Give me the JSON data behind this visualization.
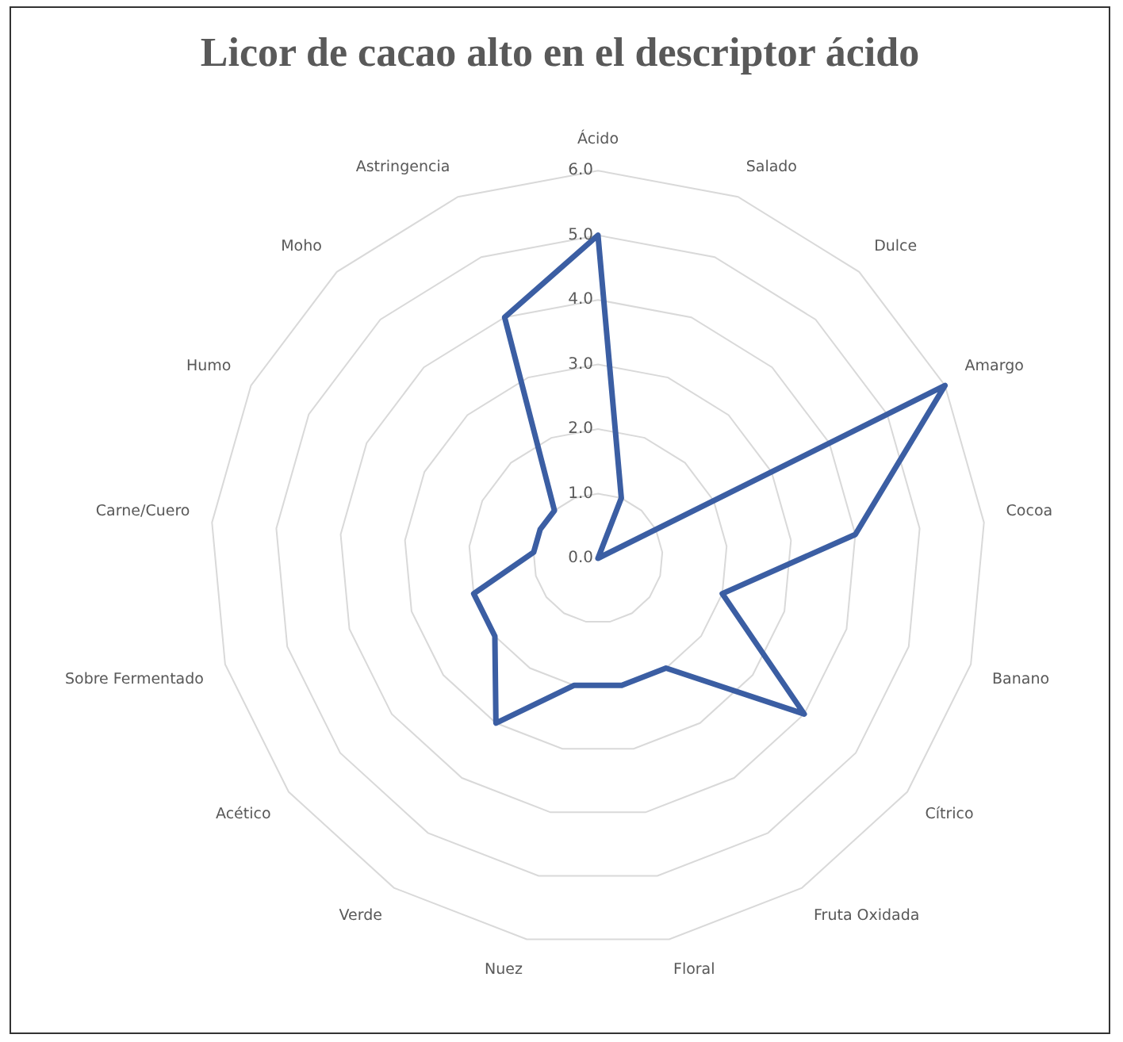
{
  "chart_data": {
    "type": "radar",
    "title": "Licor de cacao alto en el descriptor ácido",
    "categories": [
      "Ácido",
      "Salado",
      "Dulce",
      "Amargo",
      "Cocoa",
      "Banano",
      "Cítrico",
      "Fruta Oxidada",
      "Floral",
      "Nuez",
      "Verde",
      "Acético",
      "Sobre Fermentado",
      "Carne/Cuero",
      "Humo",
      "Moho",
      "Astringencia"
    ],
    "series": [
      {
        "color": "#3b5ea3",
        "values": [
          5.0,
          1.0,
          0,
          6.0,
          4.0,
          2.0,
          4.0,
          2.0,
          2.0,
          2.0,
          3.0,
          2.0,
          2.0,
          1.0,
          1.0,
          1.0,
          4.0
        ]
      }
    ],
    "ylim": [
      0,
      6
    ],
    "yticks": [
      {
        "value": 0,
        "label": "0.0"
      },
      {
        "value": 1,
        "label": "1.0"
      },
      {
        "value": 2,
        "label": "2.0"
      },
      {
        "value": 3,
        "label": "3.0"
      },
      {
        "value": 4,
        "label": "4.0"
      },
      {
        "value": 5,
        "label": "5.0"
      },
      {
        "value": 6,
        "label": "6.0"
      }
    ],
    "grid": true,
    "legend": false,
    "marker": "none"
  }
}
